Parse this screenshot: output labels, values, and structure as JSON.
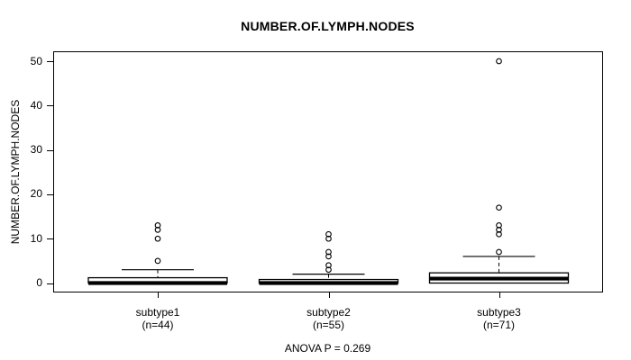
{
  "colors": {
    "foreground": "#000000",
    "background": "#ffffff"
  },
  "footer": {
    "text": "ANOVA P = 0.269"
  },
  "chart_data": {
    "type": "boxplot",
    "title": "NUMBER.OF.LYMPH.NODES",
    "ylabel": "NUMBER.OF.LYMPH.NODES",
    "xlabel": "",
    "ylim": [
      0,
      50
    ],
    "yticks": [
      0,
      10,
      20,
      30,
      40,
      50
    ],
    "grid": "off",
    "legend": "none",
    "annotation": "ANOVA P = 0.269",
    "groups": [
      {
        "label": "subtype1",
        "n_label": "(n=44)",
        "n": 44,
        "q1": 0,
        "median": 0,
        "q3": 1.2,
        "whisker_low": 0,
        "whisker_high": 3,
        "outliers": [
          5,
          10,
          12,
          13
        ]
      },
      {
        "label": "subtype2",
        "n_label": "(n=55)",
        "n": 55,
        "q1": 0,
        "median": 0,
        "q3": 0.8,
        "whisker_low": 0,
        "whisker_high": 2,
        "outliers": [
          3,
          4,
          6,
          7,
          10,
          11
        ]
      },
      {
        "label": "subtype3",
        "n_label": "(n=71)",
        "n": 71,
        "q1": 0,
        "median": 1,
        "q3": 2.3,
        "whisker_low": 0,
        "whisker_high": 6,
        "outliers": [
          7,
          11,
          12,
          13,
          17,
          50
        ]
      }
    ]
  }
}
